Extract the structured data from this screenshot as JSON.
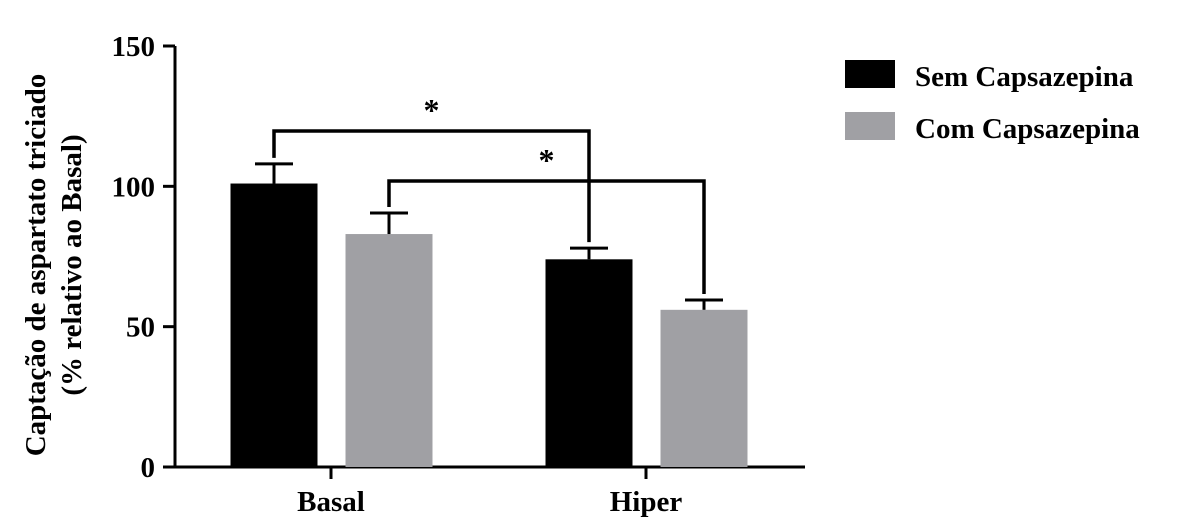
{
  "chart_data": {
    "type": "bar",
    "ylabel_line1": "Captação de aspartato triciado",
    "ylabel_line2": "(% relativo ao Basal)",
    "ylim": [
      0,
      150
    ],
    "yticks": [
      0,
      50,
      100,
      150
    ],
    "categories": [
      "Basal",
      "Hiper"
    ],
    "series": [
      {
        "name": "Sem Capsazepina",
        "color": "#000000",
        "values": [
          101,
          74
        ],
        "errors": [
          7,
          4
        ]
      },
      {
        "name": "Com Capsazepina",
        "color": "#a0a0a4",
        "values": [
          83,
          56
        ],
        "errors": [
          7.5,
          3.5
        ]
      }
    ],
    "significance": [
      {
        "label": "*",
        "from": {
          "category": "Basal",
          "series": "Sem Capsazepina"
        },
        "to": {
          "category": "Hiper",
          "series": "Sem Capsazepina"
        }
      },
      {
        "label": "*",
        "from": {
          "category": "Basal",
          "series": "Com Capsazepina"
        },
        "to": {
          "category": "Hiper",
          "series": "Com Capsazepina"
        }
      }
    ],
    "legend_position": "top-right",
    "grid": false
  }
}
